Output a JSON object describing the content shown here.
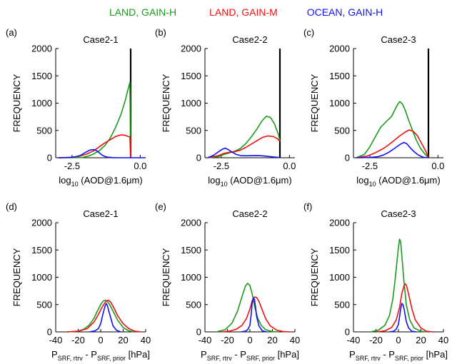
{
  "legend": [
    {
      "label": "LAND, GAIN-H",
      "color": "#1a9a1a"
    },
    {
      "label": "LAND, GAIN-M",
      "color": "#ee1111"
    },
    {
      "label": "OCEAN, GAIN-H",
      "color": "#1111ee"
    }
  ],
  "chart_data": [
    {
      "type": "line",
      "panel_label": "(a)",
      "title": "Case2-1",
      "ylabel": "FREQUENCY",
      "xlabel_main": "log",
      "xlabel_sub": "10",
      "xlabel_rest": " (AOD@1.6μm)",
      "xlim": [
        -3.1,
        0.2
      ],
      "ylim": [
        0,
        2000
      ],
      "xticks": [
        -2.5,
        0.0
      ],
      "xtick_labels": [
        "-2.5",
        "0.0"
      ],
      "yticks": [
        0,
        500,
        1000,
        1500,
        2000
      ],
      "ytick_labels": [
        "0",
        "500",
        "1000",
        "1500",
        "2000"
      ],
      "vline_x": -0.35,
      "series": [
        {
          "name": "LAND, GAIN-H",
          "color": "#1a9a1a",
          "x": [
            -3.0,
            -2.6,
            -2.3,
            -2.1,
            -1.9,
            -1.7,
            -1.5,
            -1.3,
            -1.1,
            -0.9,
            -0.7,
            -0.55,
            -0.45,
            -0.38,
            -0.35
          ],
          "y": [
            0,
            0,
            2,
            8,
            30,
            70,
            130,
            220,
            360,
            560,
            800,
            1050,
            1250,
            1380,
            0
          ]
        },
        {
          "name": "LAND, GAIN-M",
          "color": "#ee1111",
          "x": [
            -3.0,
            -2.6,
            -2.3,
            -2.0,
            -1.7,
            -1.5,
            -1.3,
            -1.1,
            -0.9,
            -0.7,
            -0.55,
            -0.45,
            -0.38,
            -0.35
          ],
          "y": [
            0,
            5,
            20,
            60,
            130,
            200,
            270,
            330,
            390,
            420,
            410,
            390,
            380,
            0
          ]
        },
        {
          "name": "OCEAN, GAIN-H",
          "color": "#1111ee",
          "x": [
            -3.0,
            -2.6,
            -2.4,
            -2.2,
            -2.0,
            -1.85,
            -1.7,
            -1.6,
            -1.5,
            -1.4,
            -1.3,
            -1.2,
            -1.0,
            -0.8,
            -0.6,
            0.2
          ],
          "y": [
            0,
            5,
            15,
            40,
            100,
            140,
            150,
            130,
            90,
            50,
            25,
            10,
            3,
            0,
            0,
            0
          ]
        }
      ]
    },
    {
      "type": "line",
      "panel_label": "(b)",
      "title": "Case2-2",
      "ylabel": "FREQUENCY",
      "xlabel_main": "log",
      "xlabel_sub": "10",
      "xlabel_rest": " (AOD@1.6μm)",
      "xlim": [
        -3.1,
        0.2
      ],
      "ylim": [
        0,
        2000
      ],
      "xticks": [
        -2.5,
        0.0
      ],
      "xtick_labels": [
        "-2.5",
        "0.0"
      ],
      "yticks": [
        0,
        500,
        1000,
        1500,
        2000
      ],
      "ytick_labels": [
        "0",
        "500",
        "1000",
        "1500",
        "2000"
      ],
      "vline_x": -0.35,
      "series": [
        {
          "name": "LAND, GAIN-H",
          "color": "#1a9a1a",
          "x": [
            -3.0,
            -2.6,
            -2.4,
            -2.2,
            -2.0,
            -1.8,
            -1.6,
            -1.4,
            -1.2,
            -1.0,
            -0.85,
            -0.7,
            -0.55,
            -0.4,
            -0.35
          ],
          "y": [
            0,
            20,
            60,
            90,
            120,
            170,
            260,
            380,
            520,
            680,
            760,
            740,
            620,
            420,
            300
          ]
        },
        {
          "name": "LAND, GAIN-M",
          "color": "#ee1111",
          "x": [
            -3.0,
            -2.6,
            -2.4,
            -2.2,
            -2.0,
            -1.8,
            -1.6,
            -1.4,
            -1.2,
            -1.0,
            -0.8,
            -0.6,
            -0.45,
            -0.35
          ],
          "y": [
            0,
            40,
            80,
            100,
            110,
            140,
            190,
            250,
            310,
            370,
            400,
            390,
            350,
            300
          ]
        },
        {
          "name": "OCEAN, GAIN-H",
          "color": "#1111ee",
          "x": [
            -3.0,
            -2.8,
            -2.6,
            -2.45,
            -2.35,
            -2.25,
            -2.1,
            -1.95,
            -1.8,
            -1.6,
            -1.4,
            -1.2,
            -1.0,
            -0.8,
            -0.6,
            -0.4,
            -0.35
          ],
          "y": [
            0,
            40,
            110,
            160,
            175,
            150,
            100,
            60,
            40,
            35,
            38,
            40,
            35,
            25,
            15,
            5,
            0
          ]
        }
      ]
    },
    {
      "type": "line",
      "panel_label": "(c)",
      "title": "Case2-3",
      "ylabel": "FREQUENCY",
      "xlabel_main": "log",
      "xlabel_sub": "10",
      "xlabel_rest": " (AOD@1.6μm)",
      "xlim": [
        -3.1,
        0.2
      ],
      "ylim": [
        0,
        2000
      ],
      "xticks": [
        -2.5,
        0.0
      ],
      "xtick_labels": [
        "-2.5",
        "0.0"
      ],
      "yticks": [
        0,
        500,
        1000,
        1500,
        2000
      ],
      "ytick_labels": [
        "0",
        "500",
        "1000",
        "1500",
        "2000"
      ],
      "vline_x": -0.35,
      "series": [
        {
          "name": "LAND, GAIN-H",
          "color": "#1a9a1a",
          "x": [
            -3.0,
            -2.7,
            -2.5,
            -2.3,
            -2.1,
            -1.9,
            -1.7,
            -1.5,
            -1.4,
            -1.3,
            -1.2,
            -1.1,
            -0.95,
            -0.8,
            -0.65,
            -0.5,
            -0.35
          ],
          "y": [
            0,
            60,
            200,
            380,
            560,
            660,
            760,
            960,
            1030,
            980,
            870,
            720,
            520,
            330,
            180,
            80,
            0
          ]
        },
        {
          "name": "LAND, GAIN-M",
          "color": "#ee1111",
          "x": [
            -3.0,
            -2.6,
            -2.3,
            -2.0,
            -1.8,
            -1.6,
            -1.4,
            -1.2,
            -1.05,
            -0.9,
            -0.75,
            -0.6,
            -0.45,
            -0.35
          ],
          "y": [
            0,
            30,
            90,
            170,
            240,
            320,
            400,
            470,
            510,
            480,
            400,
            260,
            120,
            0
          ]
        },
        {
          "name": "OCEAN, GAIN-H",
          "color": "#1111ee",
          "x": [
            -3.0,
            -2.5,
            -2.2,
            -2.0,
            -1.8,
            -1.6,
            -1.4,
            -1.25,
            -1.15,
            -1.05,
            -0.9,
            -0.75,
            -0.6,
            -0.5,
            -0.35
          ],
          "y": [
            0,
            5,
            20,
            50,
            100,
            170,
            240,
            280,
            260,
            200,
            120,
            60,
            20,
            5,
            0
          ]
        }
      ]
    },
    {
      "type": "line",
      "panel_label": "(d)",
      "title": "Case2-1",
      "ylabel": "FREQUENCY",
      "xlabel_main": "P",
      "xlabel_sub": "SRF, rtrv",
      "xlabel_mid": " - P",
      "xlabel_sub2": "SRF, prior",
      "xlabel_rest": " [hPa]",
      "xlim": [
        -40,
        40
      ],
      "ylim": [
        0,
        2000
      ],
      "xticks": [
        -40,
        -20,
        0,
        20,
        40
      ],
      "xtick_labels": [
        "-40",
        "-20",
        "0",
        "20",
        "40"
      ],
      "yticks": [
        0,
        500,
        1000,
        1500,
        2000
      ],
      "ytick_labels": [
        "0",
        "500",
        "1000",
        "1500",
        "2000"
      ],
      "series": [
        {
          "name": "LAND, GAIN-H",
          "color": "#1a9a1a",
          "x": [
            -30,
            -20,
            -15,
            -10,
            -6,
            -3,
            0,
            2,
            4,
            6,
            8,
            11,
            15,
            20,
            25,
            30
          ],
          "y": [
            0,
            15,
            50,
            130,
            250,
            380,
            500,
            560,
            580,
            560,
            500,
            380,
            220,
            80,
            20,
            0
          ]
        },
        {
          "name": "LAND, GAIN-M",
          "color": "#ee1111",
          "x": [
            -30,
            -20,
            -12,
            -6,
            -2,
            2,
            5,
            7,
            9,
            12,
            15,
            20,
            25,
            30,
            36
          ],
          "y": [
            0,
            10,
            60,
            180,
            320,
            480,
            570,
            580,
            540,
            430,
            300,
            150,
            60,
            15,
            0
          ]
        },
        {
          "name": "OCEAN, GAIN-H",
          "color": "#1111ee",
          "x": [
            -10,
            -5,
            -2,
            0,
            2,
            4,
            5,
            6,
            7,
            9,
            11,
            14,
            18
          ],
          "y": [
            0,
            20,
            60,
            150,
            330,
            480,
            520,
            480,
            400,
            250,
            110,
            30,
            0
          ]
        }
      ]
    },
    {
      "type": "line",
      "panel_label": "(e)",
      "title": "Case2-2",
      "ylabel": "FREQUENCY",
      "xlabel_main": "P",
      "xlabel_sub": "SRF, rtrv",
      "xlabel_mid": " - P",
      "xlabel_sub2": "SRF, prior",
      "xlabel_rest": " [hPa]",
      "xlim": [
        -40,
        40
      ],
      "ylim": [
        0,
        2000
      ],
      "xticks": [
        -40,
        -20,
        0,
        20,
        40
      ],
      "xtick_labels": [
        "-40",
        "-20",
        "0",
        "20",
        "40"
      ],
      "yticks": [
        0,
        500,
        1000,
        1500,
        2000
      ],
      "ytick_labels": [
        "0",
        "500",
        "1000",
        "1500",
        "2000"
      ],
      "series": [
        {
          "name": "LAND, GAIN-H",
          "color": "#1a9a1a",
          "x": [
            -30,
            -22,
            -16,
            -11,
            -7,
            -4,
            -2,
            0,
            2,
            4,
            7,
            10,
            14,
            20,
            26
          ],
          "y": [
            0,
            40,
            160,
            380,
            650,
            840,
            890,
            850,
            700,
            480,
            250,
            120,
            40,
            5,
            0
          ]
        },
        {
          "name": "LAND, GAIN-M",
          "color": "#ee1111",
          "x": [
            -26,
            -18,
            -12,
            -7,
            -3,
            0,
            2,
            4,
            6,
            8,
            11,
            14,
            18,
            24,
            30,
            36
          ],
          "y": [
            0,
            15,
            50,
            120,
            250,
            420,
            570,
            640,
            630,
            560,
            400,
            240,
            110,
            30,
            5,
            0
          ]
        },
        {
          "name": "OCEAN, GAIN-H",
          "color": "#1111ee",
          "x": [
            -8,
            -4,
            -2,
            0,
            1,
            2,
            3,
            4,
            5,
            6,
            8,
            11,
            15
          ],
          "y": [
            0,
            15,
            40,
            120,
            300,
            520,
            620,
            600,
            450,
            280,
            110,
            20,
            0
          ]
        }
      ]
    },
    {
      "type": "line",
      "panel_label": "(f)",
      "title": "Case2-3",
      "ylabel": "FREQUENCY",
      "xlabel_main": "P",
      "xlabel_sub": "SRF, rtrv",
      "xlabel_mid": " - P",
      "xlabel_sub2": "SRF, prior",
      "xlabel_rest": " [hPa]",
      "xlim": [
        -40,
        40
      ],
      "ylim": [
        0,
        2000
      ],
      "xticks": [
        -40,
        -20,
        0,
        20,
        40
      ],
      "xtick_labels": [
        "-40",
        "-20",
        "0",
        "20",
        "40"
      ],
      "yticks": [
        0,
        500,
        1000,
        1500,
        2000
      ],
      "ytick_labels": [
        "0",
        "500",
        "1000",
        "1500",
        "2000"
      ],
      "series": [
        {
          "name": "LAND, GAIN-H",
          "color": "#1a9a1a",
          "x": [
            -25,
            -18,
            -12,
            -8,
            -5,
            -3,
            -1,
            0,
            1,
            2,
            3,
            5,
            7,
            10,
            14,
            20,
            26
          ],
          "y": [
            0,
            30,
            120,
            300,
            600,
            950,
            1350,
            1550,
            1700,
            1650,
            1400,
            900,
            500,
            220,
            70,
            10,
            0
          ]
        },
        {
          "name": "LAND, GAIN-M",
          "color": "#ee1111",
          "x": [
            -20,
            -12,
            -6,
            -2,
            1,
            3,
            5,
            6,
            7,
            8,
            10,
            12,
            15,
            20,
            25,
            31
          ],
          "y": [
            0,
            20,
            80,
            220,
            450,
            700,
            850,
            880,
            860,
            780,
            600,
            420,
            220,
            70,
            10,
            0
          ]
        },
        {
          "name": "OCEAN, GAIN-H",
          "color": "#1111ee",
          "x": [
            -8,
            -4,
            -2,
            0,
            1,
            2,
            3,
            4,
            5,
            6,
            7,
            9,
            12,
            16
          ],
          "y": [
            0,
            15,
            50,
            140,
            280,
            420,
            520,
            500,
            420,
            300,
            190,
            70,
            10,
            0
          ]
        }
      ]
    }
  ]
}
